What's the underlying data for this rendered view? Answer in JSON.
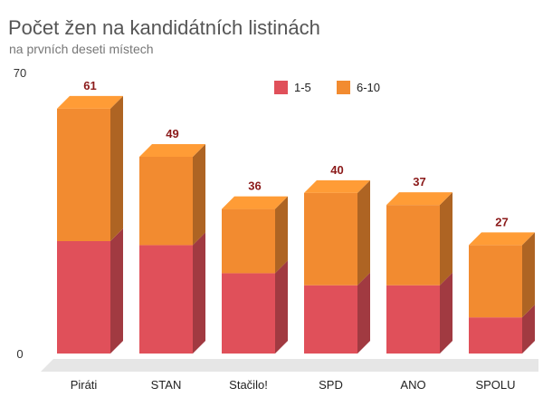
{
  "title": "Počet žen na kandidátních listinách",
  "subtitle": "na prvních deseti místech",
  "chart_data": {
    "type": "bar",
    "stacked": true,
    "three_d": true,
    "title": "Počet žen na kandidátních listinách",
    "subtitle": "na prvních deseti místech",
    "categories": [
      "Piráti",
      "STAN",
      "Stačilo!",
      "SPD",
      "ANO",
      "SPOLU"
    ],
    "series": [
      {
        "name": "1-5",
        "color": "#e0505a",
        "values": [
          28,
          27,
          20,
          17,
          17,
          9
        ]
      },
      {
        "name": "6-10",
        "color": "#f28b30",
        "values": [
          33,
          22,
          16,
          23,
          20,
          18
        ]
      }
    ],
    "totals": [
      "61",
      "49",
      "36",
      "40",
      "37",
      "27"
    ],
    "total_label_color": "#8b1a1a",
    "ylim": [
      0,
      70
    ],
    "yticks": [
      "0",
      "70"
    ],
    "legend_position": "top-center",
    "grid": false
  }
}
